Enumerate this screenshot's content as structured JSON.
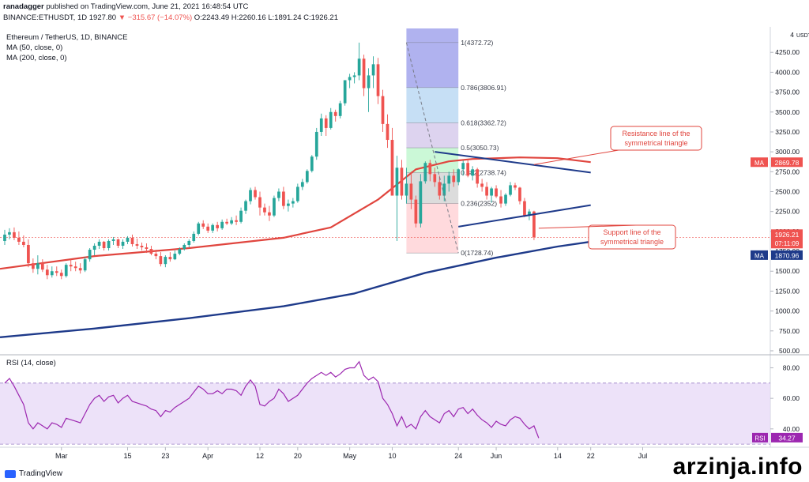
{
  "header": {
    "user": "ranadagger",
    "published_text": "published on TradingView.com, June 21, 2021 16:48:54 UTC",
    "symbol_line": "BINANCE:ETHUSDT, 1D",
    "last": "1927.80",
    "change": "▼ −315.67 (−14.07%)",
    "ohlc": "O:2243.49  H:2260.16  L:1891.24  C:1926.21"
  },
  "legend": {
    "title": "Ethereum / TetherUS, 1D, BINANCE",
    "ma50": "MA (50, close, 0)",
    "ma200": "MA (200, close, 0)"
  },
  "rsi_legend": "RSI (14, close)",
  "brand": "TradingView",
  "watermark": "arzinja.info",
  "chart_data": [
    {
      "type": "candlestick",
      "currency_label": "USDT",
      "y_ticks": [
        500,
        750,
        1000,
        1250,
        1500,
        1750,
        2000,
        2250,
        2500,
        2750,
        3000,
        3250,
        3500,
        3750,
        4000,
        4250
      ],
      "y_tick_labels": [
        "500.00",
        "750.00",
        "1000.00",
        "1250.00",
        "1500.00",
        "1750.00",
        "2000.00",
        "2250.00",
        "2500.00",
        "2750.00",
        "3000.00",
        "3250.00",
        "3500.00",
        "3750.00",
        "4000.00",
        "4250.00"
      ],
      "y_top_label": "4",
      "ylim": [
        460,
        4550
      ],
      "x_ticks": [
        "Mar",
        "15",
        "23",
        "Apr",
        "12",
        "20",
        "May",
        "10",
        "24",
        "Jun",
        "14",
        "22",
        "Jul"
      ],
      "x_range_days": 163,
      "x_tick_days": [
        13,
        27,
        35,
        44,
        55,
        63,
        74,
        83,
        97,
        105,
        118,
        125,
        136
      ],
      "candles": [
        [
          1880,
          2020,
          1830,
          1960
        ],
        [
          1960,
          2040,
          1900,
          1990
        ],
        [
          1990,
          2050,
          1890,
          1920
        ],
        [
          1920,
          2000,
          1830,
          1870
        ],
        [
          1870,
          1950,
          1800,
          1830
        ],
        [
          1830,
          1900,
          1550,
          1600
        ],
        [
          1600,
          1660,
          1480,
          1530
        ],
        [
          1530,
          1700,
          1460,
          1600
        ],
        [
          1600,
          1650,
          1490,
          1520
        ],
        [
          1520,
          1580,
          1400,
          1450
        ],
        [
          1450,
          1560,
          1420,
          1500
        ],
        [
          1500,
          1560,
          1440,
          1480
        ],
        [
          1480,
          1520,
          1400,
          1440
        ],
        [
          1440,
          1600,
          1420,
          1580
        ],
        [
          1580,
          1650,
          1500,
          1560
        ],
        [
          1560,
          1620,
          1500,
          1540
        ],
        [
          1540,
          1600,
          1470,
          1510
        ],
        [
          1510,
          1680,
          1490,
          1650
        ],
        [
          1650,
          1790,
          1620,
          1770
        ],
        [
          1770,
          1850,
          1700,
          1820
        ],
        [
          1820,
          1900,
          1780,
          1870
        ],
        [
          1870,
          1880,
          1760,
          1790
        ],
        [
          1790,
          1900,
          1760,
          1880
        ],
        [
          1880,
          1930,
          1830,
          1900
        ],
        [
          1900,
          1910,
          1790,
          1820
        ],
        [
          1820,
          1900,
          1780,
          1870
        ],
        [
          1870,
          1940,
          1840,
          1920
        ],
        [
          1920,
          1960,
          1810,
          1840
        ],
        [
          1840,
          1910,
          1780,
          1820
        ],
        [
          1820,
          1860,
          1760,
          1800
        ],
        [
          1800,
          1850,
          1730,
          1780
        ],
        [
          1780,
          1820,
          1700,
          1720
        ],
        [
          1720,
          1770,
          1650,
          1690
        ],
        [
          1690,
          1740,
          1560,
          1590
        ],
        [
          1590,
          1700,
          1550,
          1680
        ],
        [
          1680,
          1740,
          1620,
          1650
        ],
        [
          1650,
          1760,
          1640,
          1720
        ],
        [
          1720,
          1800,
          1700,
          1780
        ],
        [
          1780,
          1850,
          1760,
          1830
        ],
        [
          1830,
          1900,
          1800,
          1880
        ],
        [
          1880,
          2000,
          1860,
          1970
        ],
        [
          1970,
          2120,
          1950,
          2100
        ],
        [
          2100,
          2140,
          2030,
          2060
        ],
        [
          2060,
          2100,
          1980,
          2010
        ],
        [
          2010,
          2100,
          1980,
          2080
        ],
        [
          2080,
          2120,
          2000,
          2040
        ],
        [
          2040,
          2150,
          2020,
          2120
        ],
        [
          2120,
          2160,
          2080,
          2100
        ],
        [
          2100,
          2180,
          2080,
          2140
        ],
        [
          2140,
          2200,
          2080,
          2120
        ],
        [
          2120,
          2300,
          2100,
          2260
        ],
        [
          2260,
          2400,
          2220,
          2380
        ],
        [
          2380,
          2550,
          2340,
          2520
        ],
        [
          2520,
          2560,
          2400,
          2430
        ],
        [
          2430,
          2500,
          2200,
          2300
        ],
        [
          2300,
          2350,
          2200,
          2240
        ],
        [
          2240,
          2320,
          2130,
          2200
        ],
        [
          2200,
          2450,
          2180,
          2420
        ],
        [
          2420,
          2540,
          2380,
          2500
        ],
        [
          2500,
          2560,
          2280,
          2320
        ],
        [
          2320,
          2400,
          2250,
          2350
        ],
        [
          2350,
          2420,
          2300,
          2380
        ],
        [
          2380,
          2600,
          2360,
          2560
        ],
        [
          2560,
          2660,
          2520,
          2620
        ],
        [
          2620,
          2780,
          2600,
          2760
        ],
        [
          2760,
          2960,
          2740,
          2940
        ],
        [
          2940,
          3300,
          2900,
          3250
        ],
        [
          3250,
          3480,
          3200,
          3420
        ],
        [
          3420,
          3460,
          3200,
          3300
        ],
        [
          3300,
          3550,
          3280,
          3500
        ],
        [
          3500,
          3530,
          3380,
          3450
        ],
        [
          3450,
          3640,
          3420,
          3610
        ],
        [
          3610,
          3900,
          3580,
          3900
        ],
        [
          3900,
          3980,
          3800,
          3940
        ],
        [
          3940,
          4000,
          3860,
          3960
        ],
        [
          3960,
          4372,
          3900,
          4170
        ],
        [
          4170,
          4220,
          3700,
          3800
        ],
        [
          3800,
          4050,
          3500,
          3960
        ],
        [
          3960,
          4200,
          3800,
          4100
        ],
        [
          4100,
          4180,
          3600,
          3700
        ],
        [
          3700,
          3780,
          3250,
          3350
        ],
        [
          3350,
          3470,
          3050,
          3150
        ],
        [
          3150,
          3300,
          2450,
          2450
        ],
        [
          2450,
          2950,
          1880,
          2800
        ],
        [
          2800,
          2900,
          2400,
          2450
        ],
        [
          2450,
          2800,
          2350,
          2600
        ],
        [
          2600,
          2750,
          2280,
          2400
        ],
        [
          2400,
          2450,
          2050,
          2100
        ],
        [
          2100,
          2720,
          2050,
          2630
        ],
        [
          2630,
          2880,
          2600,
          2860
        ],
        [
          2860,
          2900,
          2630,
          2720
        ],
        [
          2720,
          2800,
          2560,
          2620
        ],
        [
          2620,
          2700,
          2400,
          2450
        ],
        [
          2450,
          2700,
          2380,
          2600
        ],
        [
          2600,
          2750,
          2500,
          2700
        ],
        [
          2700,
          2780,
          2560,
          2620
        ],
        [
          2620,
          2790,
          2580,
          2780
        ],
        [
          2780,
          2890,
          2700,
          2860
        ],
        [
          2860,
          2900,
          2680,
          2700
        ],
        [
          2700,
          2820,
          2640,
          2780
        ],
        [
          2780,
          2800,
          2550,
          2600
        ],
        [
          2600,
          2660,
          2500,
          2560
        ],
        [
          2560,
          2620,
          2400,
          2450
        ],
        [
          2450,
          2560,
          2360,
          2540
        ],
        [
          2540,
          2580,
          2420,
          2440
        ],
        [
          2440,
          2520,
          2300,
          2350
        ],
        [
          2350,
          2480,
          2320,
          2460
        ],
        [
          2460,
          2620,
          2440,
          2580
        ],
        [
          2580,
          2610,
          2520,
          2550
        ],
        [
          2550,
          2560,
          2340,
          2380
        ],
        [
          2380,
          2420,
          2180,
          2200
        ],
        [
          2200,
          2280,
          2140,
          2250
        ],
        [
          2250,
          2260,
          1891,
          1926
        ]
      ],
      "candle_start_day": 1,
      "ma50": [
        [
          0,
          1530
        ],
        [
          20,
          1690
        ],
        [
          40,
          1790
        ],
        [
          60,
          1920
        ],
        [
          70,
          2050
        ],
        [
          80,
          2400
        ],
        [
          88,
          2780
        ],
        [
          95,
          2880
        ],
        [
          100,
          2910
        ],
        [
          110,
          2930
        ],
        [
          118,
          2920
        ],
        [
          125,
          2870
        ]
      ],
      "ma200": [
        [
          0,
          670
        ],
        [
          20,
          780
        ],
        [
          40,
          910
        ],
        [
          60,
          1060
        ],
        [
          75,
          1220
        ],
        [
          90,
          1480
        ],
        [
          105,
          1670
        ],
        [
          118,
          1810
        ],
        [
          125,
          1871
        ]
      ],
      "fibonacci": {
        "levels": [
          {
            "ratio": "1",
            "value": 4372.72,
            "label": "1(4372.72)"
          },
          {
            "ratio": "0.786",
            "value": 3806.91,
            "label": "0.786(3806.91)"
          },
          {
            "ratio": "0.618",
            "value": 3362.72,
            "label": "0.618(3362.72)"
          },
          {
            "ratio": "0.5",
            "value": 3050.73,
            "label": "0.5(3050.73)"
          },
          {
            "ratio": "0.382",
            "value": 2738.74,
            "label": "0.382(2738.74)"
          },
          {
            "ratio": "0.236",
            "value": 2352.0,
            "label": "0.236(2352)"
          },
          {
            "ratio": "0",
            "value": 1728.74,
            "label": "0(1728.74)"
          }
        ],
        "start_day": 86,
        "end_day": 97,
        "colors": [
          "#9598ea",
          "#b3d4f2",
          "#d1c4e9",
          "#b9f6ca",
          "#d0d0d0",
          "#ffcdd2"
        ]
      },
      "trendlines": [
        {
          "name": "resistance",
          "from": [
            92,
            3000
          ],
          "to": [
            125,
            2740
          ]
        },
        {
          "name": "support",
          "from": [
            97,
            2060
          ],
          "to": [
            125,
            2330
          ]
        },
        {
          "name": "zigzag-a",
          "from": [
            86,
            4372
          ],
          "to": [
            97,
            1728
          ]
        }
      ],
      "annotations": [
        {
          "text": [
            "Resistance line of the",
            "symmetrical triangle"
          ],
          "anchor": [
            113,
            2840
          ]
        },
        {
          "text": [
            "Support line of the",
            "symmetrical triangle"
          ],
          "anchor": [
            114,
            2040
          ]
        }
      ],
      "price_tags": [
        {
          "name": "MA",
          "value": 2869.78,
          "label": "2869.78",
          "color": "#ef5350"
        },
        {
          "name": "last",
          "value": 1926.21,
          "label": "1926.21",
          "sub": "07:11:09",
          "color": "#ef5350"
        },
        {
          "name": "MA",
          "value": 1870.96,
          "label": "1870.96",
          "color": "#1e3a8a"
        }
      ],
      "colors": {
        "up": "#26a69a",
        "down": "#ef5350",
        "ma50": "#e0453e",
        "ma200": "#1e3a8a"
      }
    },
    {
      "type": "line",
      "name": "RSI (14, close)",
      "ylim": [
        28,
        88
      ],
      "y_ticks": [
        40,
        60,
        80
      ],
      "y_tick_labels": [
        "40.00",
        "60.00",
        "80.00"
      ],
      "band": [
        30,
        70
      ],
      "current_value": "34.27",
      "values": [
        70,
        73,
        68,
        62,
        56,
        44,
        40,
        44,
        42,
        40,
        44,
        43,
        41,
        47,
        46,
        45,
        44,
        50,
        56,
        60,
        62,
        58,
        61,
        62,
        57,
        60,
        62,
        58,
        57,
        56,
        55,
        53,
        52,
        48,
        52,
        51,
        54,
        56,
        58,
        60,
        64,
        68,
        66,
        63,
        63,
        65,
        63,
        66,
        66,
        65,
        62,
        68,
        72,
        68,
        56,
        55,
        58,
        60,
        66,
        63,
        58,
        60,
        62,
        66,
        70,
        73,
        75,
        77,
        75,
        77,
        74,
        76,
        79,
        80,
        80,
        84,
        75,
        72,
        74,
        71,
        60,
        56,
        50,
        42,
        48,
        41,
        43,
        40,
        48,
        52,
        48,
        46,
        44,
        50,
        52,
        48,
        53,
        54,
        50,
        53,
        49,
        46,
        44,
        41,
        45,
        43,
        42,
        46,
        48,
        47,
        43,
        40,
        42,
        34
      ]
    }
  ]
}
